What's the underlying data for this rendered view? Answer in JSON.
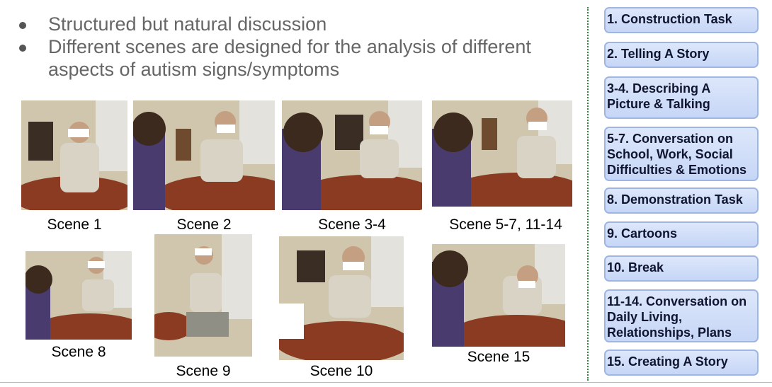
{
  "bullets": [
    "Structured but natural discussion",
    "Different scenes are designed for the analysis of different aspects of autism signs/symptoms"
  ],
  "scenes": [
    "Scene 1",
    "Scene 2",
    "Scene 3-4",
    "Scene 5-7, 11-14",
    "Scene 8",
    "Scene 9",
    "Scene 10",
    "Scene 15"
  ],
  "tasks": [
    "1. Construction Task",
    "2. Telling A Story",
    "3-4. Describing A Picture & Talking",
    "5-7. Conversation on School, Work, Social Difficulties & Emotions",
    "8. Demonstration Task",
    "9. Cartoons",
    "10. Break",
    "11-14. Conversation on Daily Living, Relationships, Plans",
    "15. Creating A Story"
  ],
  "colors": {
    "divider": "#2e8b3d",
    "task_fill": "#c6d6f6",
    "task_border": "#9fb6e4",
    "bullet_text": "#666666"
  }
}
